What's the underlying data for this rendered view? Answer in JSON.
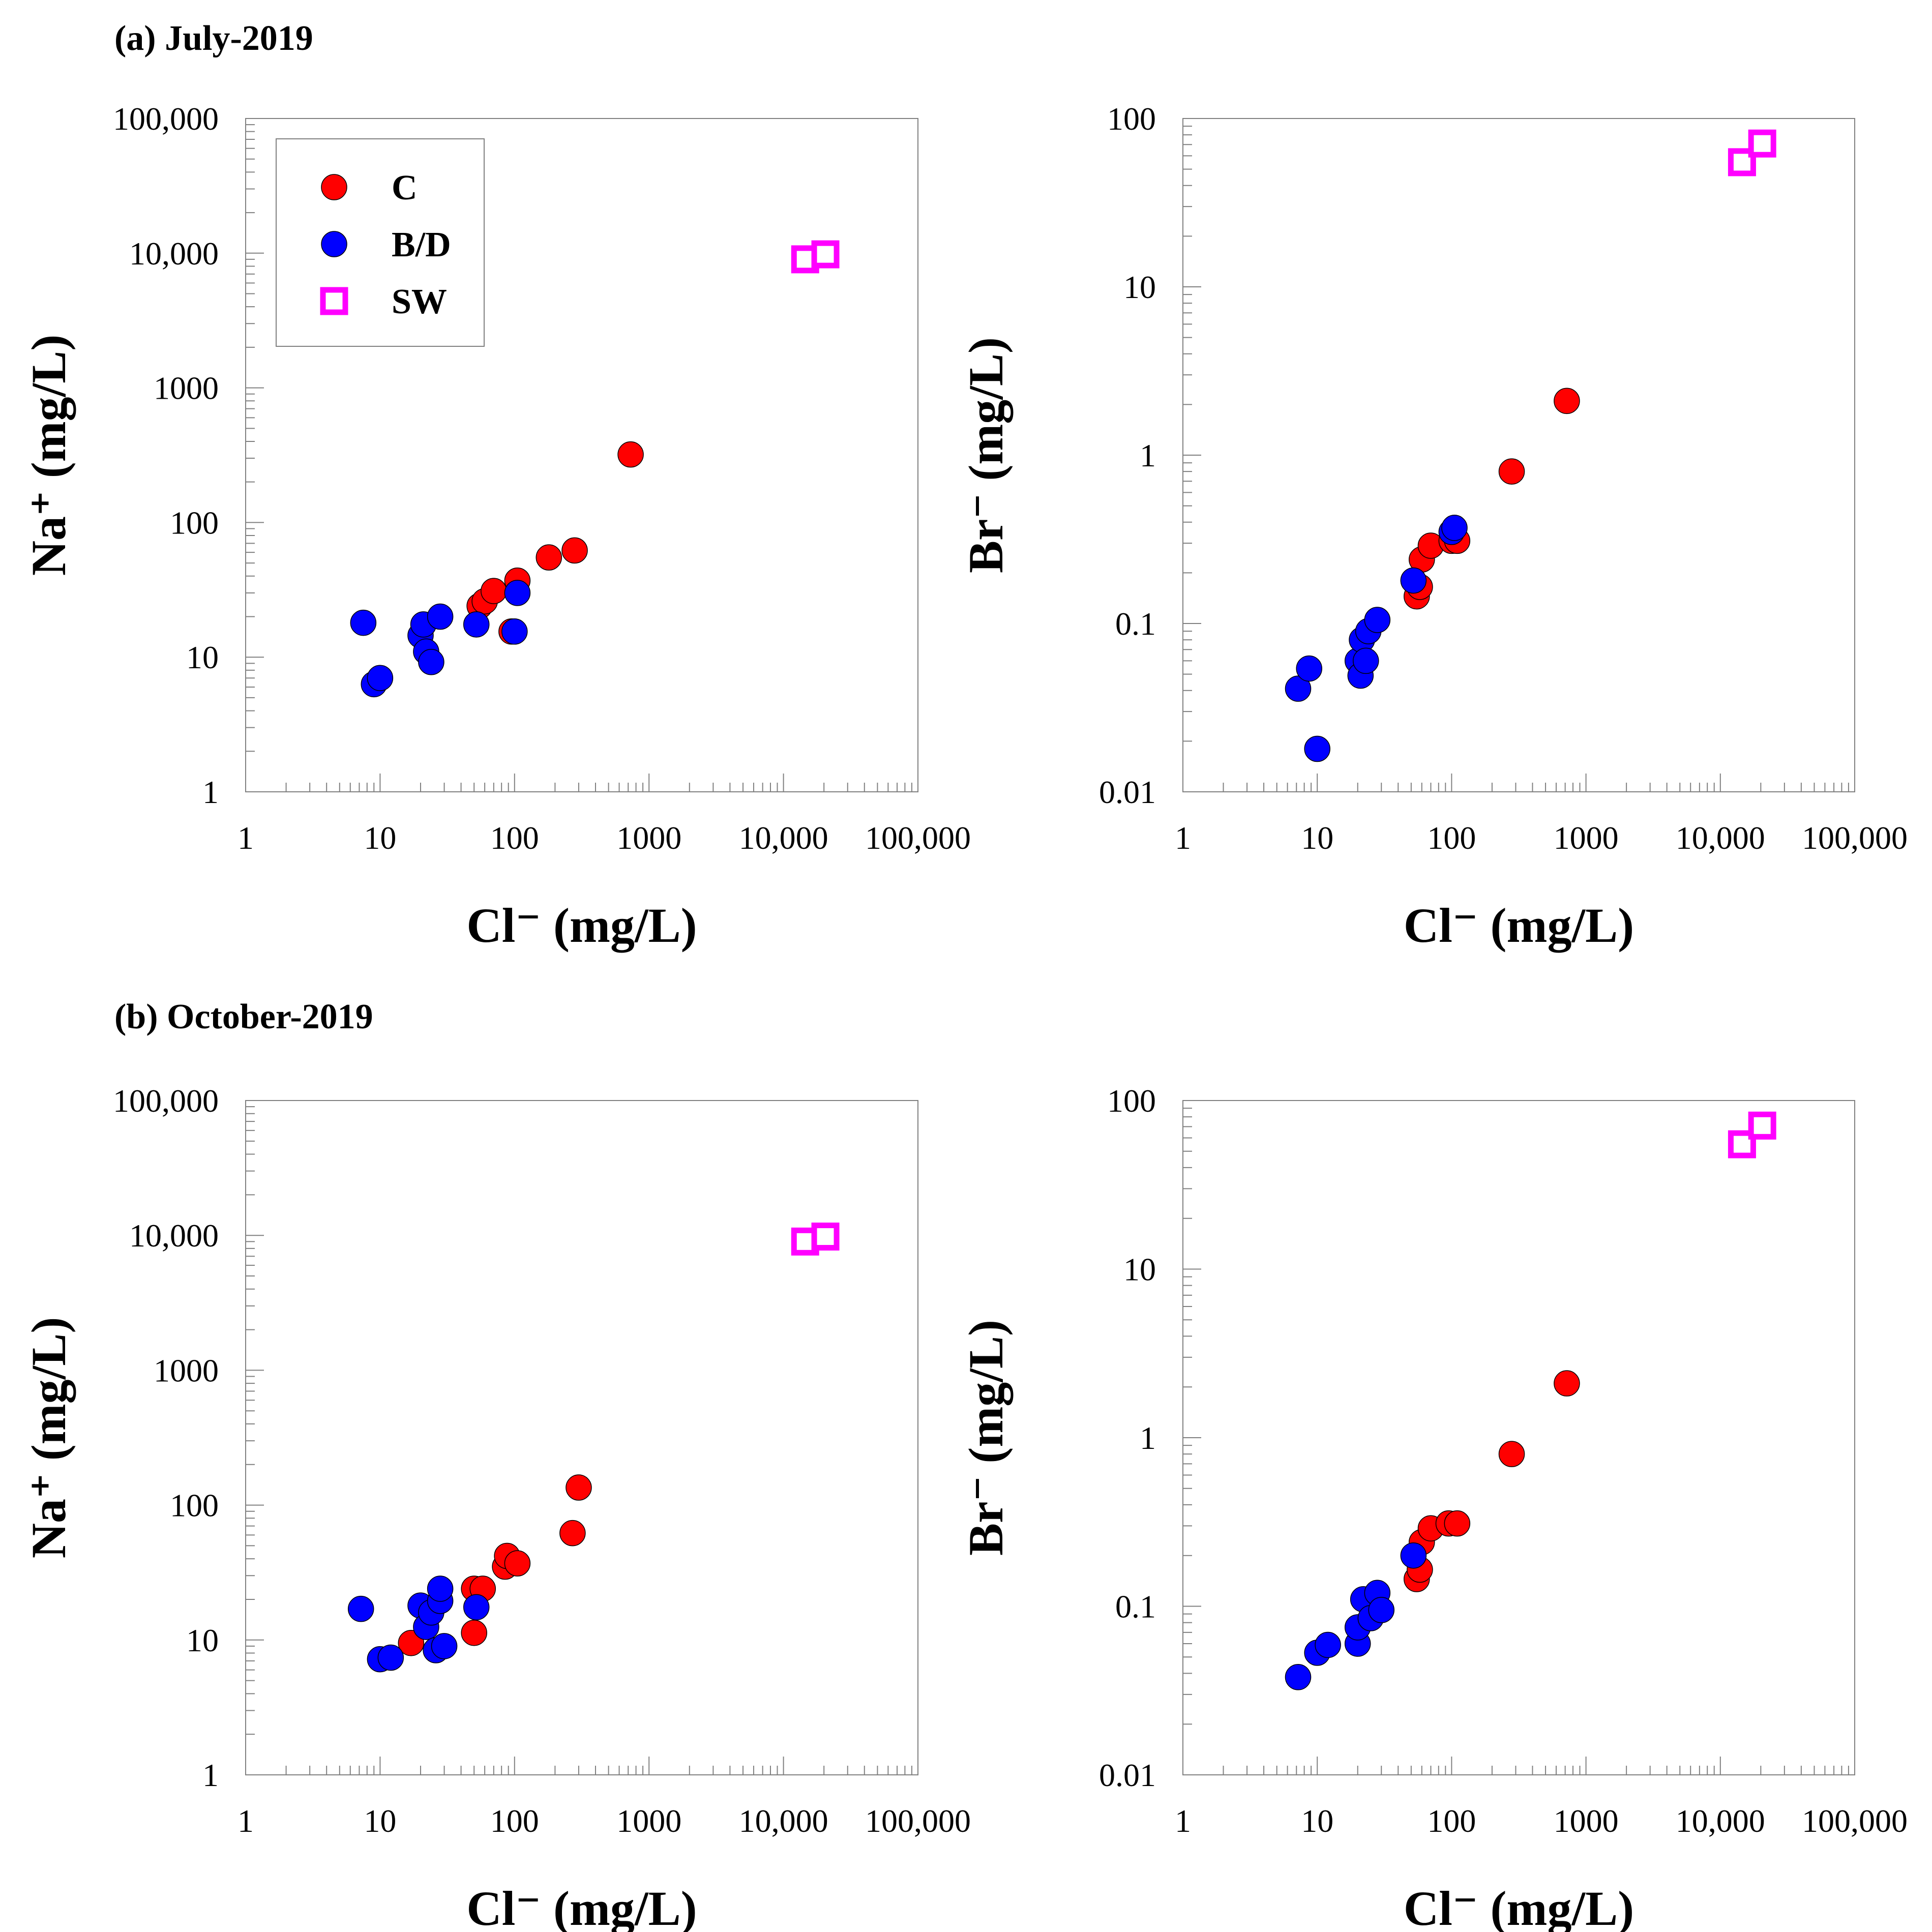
{
  "figure": {
    "panel_titles": [
      "(a) July-2019",
      "(b) October-2019"
    ]
  },
  "colors": {
    "C": "#ff0000",
    "B/D": "#0000ff",
    "SW": "#ff00ff"
  },
  "chart_data": [
    {
      "id": "jul-na",
      "type": "scatter",
      "xscale": "log",
      "yscale": "log",
      "xlim": [
        1,
        100000
      ],
      "ylim": [
        1,
        100000
      ],
      "xlabel": "Cl⁻ (mg/L)",
      "ylabel": "Na⁺ (mg/L)",
      "xticks": [
        1,
        10,
        100,
        1000,
        10000,
        100000
      ],
      "xtick_labels": [
        "1",
        "10",
        "100",
        "1000",
        "10,000",
        "100,000"
      ],
      "yticks": [
        1,
        10,
        100,
        1000,
        10000,
        100000
      ],
      "ytick_labels": [
        "1",
        "10",
        "100",
        "1000",
        "10,000",
        "100,000"
      ],
      "legend": {
        "placement": "top-left",
        "entries": [
          "C",
          "B/D",
          "SW"
        ]
      },
      "series": [
        {
          "name": "C",
          "marker": "circle",
          "points": [
            [
              55,
              24
            ],
            [
              60,
              26
            ],
            [
              70,
              31
            ],
            [
              105,
              37
            ],
            [
              95,
              15.5
            ],
            [
              180,
              55
            ],
            [
              280,
              62
            ],
            [
              730,
              320
            ]
          ]
        },
        {
          "name": "B/D",
          "marker": "circle",
          "points": [
            [
              7.5,
              18
            ],
            [
              9,
              6.3
            ],
            [
              10,
              7
            ],
            [
              20,
              14.5
            ],
            [
              21,
              17.5
            ],
            [
              22,
              11
            ],
            [
              24,
              9.2
            ],
            [
              28,
              20
            ],
            [
              52,
              17.5
            ],
            [
              100,
              15.5
            ],
            [
              105,
              30
            ]
          ]
        },
        {
          "name": "SW",
          "marker": "square",
          "points": [
            [
              14500,
              9000
            ],
            [
              20500,
              9800
            ]
          ]
        }
      ]
    },
    {
      "id": "jul-br",
      "type": "scatter",
      "xscale": "log",
      "yscale": "log",
      "xlim": [
        1,
        100000
      ],
      "ylim": [
        0.01,
        100
      ],
      "xlabel": "Cl⁻ (mg/L)",
      "ylabel": "Br⁻ (mg/L)",
      "xticks": [
        1,
        10,
        100,
        1000,
        10000,
        100000
      ],
      "xtick_labels": [
        "1",
        "10",
        "100",
        "1000",
        "10,000",
        "100,000"
      ],
      "yticks": [
        0.01,
        0.1,
        1,
        10,
        100
      ],
      "ytick_labels": [
        "0.01",
        "0.1",
        "1",
        "10",
        "100"
      ],
      "series": [
        {
          "name": "C",
          "marker": "circle",
          "points": [
            [
              55,
              0.145
            ],
            [
              58,
              0.165
            ],
            [
              60,
              0.24
            ],
            [
              70,
              0.29
            ],
            [
              100,
              0.31
            ],
            [
              110,
              0.31
            ],
            [
              280,
              0.8
            ],
            [
              720,
              2.1
            ]
          ]
        },
        {
          "name": "B/D",
          "marker": "circle",
          "points": [
            [
              7.2,
              0.041
            ],
            [
              8.7,
              0.054
            ],
            [
              10,
              0.018
            ],
            [
              20,
              0.06
            ],
            [
              21,
              0.049
            ],
            [
              21.5,
              0.08
            ],
            [
              23,
              0.06
            ],
            [
              24,
              0.09
            ],
            [
              28,
              0.105
            ],
            [
              52,
              0.18
            ],
            [
              100,
              0.35
            ],
            [
              105,
              0.37
            ]
          ]
        },
        {
          "name": "SW",
          "marker": "square",
          "points": [
            [
              14500,
              55
            ],
            [
              20500,
              71
            ]
          ]
        }
      ]
    },
    {
      "id": "oct-na",
      "type": "scatter",
      "xscale": "log",
      "yscale": "log",
      "xlim": [
        1,
        100000
      ],
      "ylim": [
        1,
        100000
      ],
      "xlabel": "Cl⁻ (mg/L)",
      "ylabel": "Na⁺ (mg/L)",
      "xticks": [
        1,
        10,
        100,
        1000,
        10000,
        100000
      ],
      "xtick_labels": [
        "1",
        "10",
        "100",
        "1000",
        "10,000",
        "100,000"
      ],
      "yticks": [
        1,
        10,
        100,
        1000,
        10000,
        100000
      ],
      "ytick_labels": [
        "1",
        "10",
        "100",
        "1000",
        "10,000",
        "100,000"
      ],
      "series": [
        {
          "name": "C",
          "marker": "circle",
          "points": [
            [
              17,
              9.5
            ],
            [
              50,
              11.3
            ],
            [
              50,
              24
            ],
            [
              58,
              24
            ],
            [
              85,
              35
            ],
            [
              88,
              42
            ],
            [
              105,
              37
            ],
            [
              270,
              62
            ],
            [
              300,
              135
            ]
          ]
        },
        {
          "name": "B/D",
          "marker": "circle",
          "points": [
            [
              7.2,
              17
            ],
            [
              10,
              7.2
            ],
            [
              12,
              7.4
            ],
            [
              20,
              18
            ],
            [
              22,
              12.5
            ],
            [
              24,
              16
            ],
            [
              26,
              8.4
            ],
            [
              28,
              19.5
            ],
            [
              28,
              24
            ],
            [
              30,
              9
            ],
            [
              52,
              17.5
            ]
          ]
        },
        {
          "name": "SW",
          "marker": "square",
          "points": [
            [
              14500,
              9000
            ],
            [
              20500,
              9800
            ]
          ]
        }
      ]
    },
    {
      "id": "oct-br",
      "type": "scatter",
      "xscale": "log",
      "yscale": "log",
      "xlim": [
        1,
        100000
      ],
      "ylim": [
        0.01,
        100
      ],
      "xlabel": "Cl⁻ (mg/L)",
      "ylabel": "Br⁻ (mg/L)",
      "xticks": [
        1,
        10,
        100,
        1000,
        10000,
        100000
      ],
      "xtick_labels": [
        "1",
        "10",
        "100",
        "1000",
        "10,000",
        "100,000"
      ],
      "yticks": [
        0.01,
        0.1,
        1,
        10,
        100
      ],
      "ytick_labels": [
        "0.01",
        "0.1",
        "1",
        "10",
        "100"
      ],
      "series": [
        {
          "name": "C",
          "marker": "circle",
          "points": [
            [
              55,
              0.145
            ],
            [
              58,
              0.165
            ],
            [
              60,
              0.24
            ],
            [
              70,
              0.29
            ],
            [
              95,
              0.31
            ],
            [
              110,
              0.31
            ],
            [
              280,
              0.8
            ],
            [
              720,
              2.1
            ]
          ]
        },
        {
          "name": "B/D",
          "marker": "circle",
          "points": [
            [
              7.2,
              0.038
            ],
            [
              10,
              0.053
            ],
            [
              12,
              0.059
            ],
            [
              20,
              0.06
            ],
            [
              20,
              0.075
            ],
            [
              22,
              0.11
            ],
            [
              25,
              0.085
            ],
            [
              28,
              0.12
            ],
            [
              30,
              0.095
            ],
            [
              52,
              0.2
            ]
          ]
        },
        {
          "name": "SW",
          "marker": "square",
          "points": [
            [
              14500,
              55
            ],
            [
              20500,
              71
            ]
          ]
        }
      ]
    }
  ]
}
